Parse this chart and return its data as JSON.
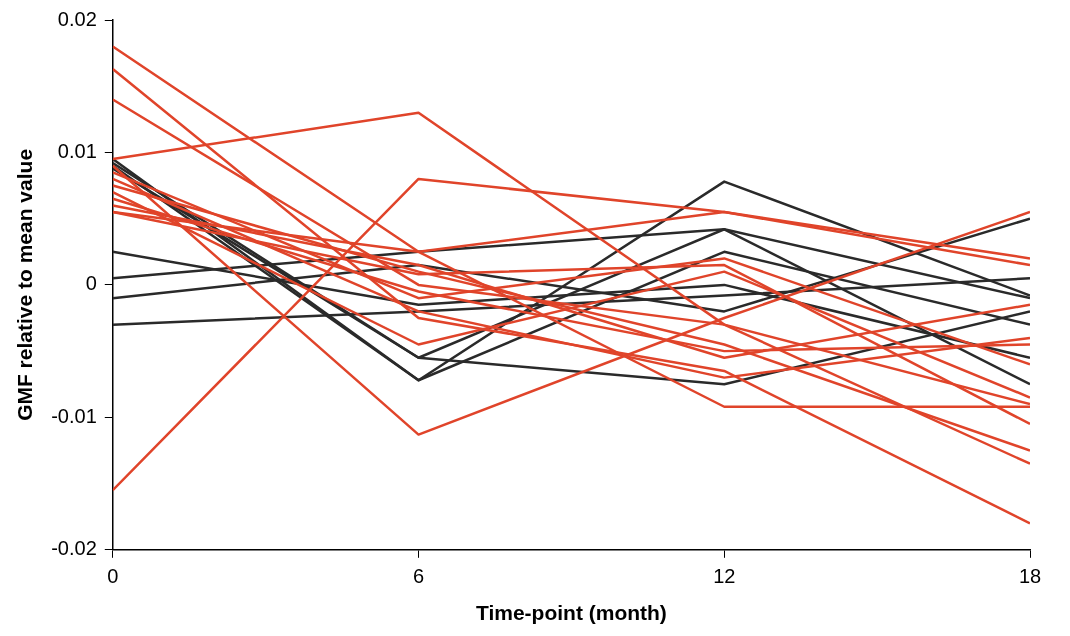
{
  "chart_data": {
    "type": "line",
    "xlabel": "Time-point (month)",
    "ylabel": "GMF relative to mean value",
    "x": [
      0,
      6,
      12,
      18
    ],
    "xlim": [
      0,
      18
    ],
    "xticks": [
      0,
      6,
      12,
      18
    ],
    "ylim": [
      -0.02,
      0.02
    ],
    "yticks": [
      -0.02,
      -0.01,
      0,
      0.01,
      0.02
    ],
    "grid": false,
    "legend": false,
    "marker": "none",
    "line_style": "solid",
    "series": [
      {
        "color": "#e0442a",
        "values": [
          0.018,
          0.0025,
          0.0055,
          0.0015
        ]
      },
      {
        "color": "#e0442a",
        "values": [
          0.0163,
          -0.0025,
          -0.0065,
          -0.018
        ]
      },
      {
        "color": "#e0442a",
        "values": [
          0.014,
          0.0,
          -0.003,
          -0.0135
        ]
      },
      {
        "color": "#e0442a",
        "values": [
          0.0095,
          0.013,
          -0.003,
          -0.009
        ]
      },
      {
        "color": "#e0442a",
        "values": [
          0.0055,
          0.0008,
          0.0015,
          -0.0105
        ]
      },
      {
        "color": "#e0442a",
        "values": [
          0.0055,
          0.0025,
          -0.0092,
          -0.0092
        ]
      },
      {
        "color": "#e0442a",
        "values": [
          -0.0155,
          0.008,
          0.0055,
          0.002
        ]
      },
      {
        "color": "#e0442a",
        "values": [
          0.009,
          -0.0113,
          -0.0025,
          0.0055
        ]
      },
      {
        "color": "#e0442a",
        "values": [
          0.0085,
          -0.001,
          0.002,
          -0.006
        ]
      },
      {
        "color": "#e0442a",
        "values": [
          0.008,
          -0.002,
          -0.007,
          -0.004
        ]
      },
      {
        "color": "#e0442a",
        "values": [
          0.0075,
          0.001,
          -0.0045,
          -0.0125
        ]
      },
      {
        "color": "#e0442a",
        "values": [
          0.007,
          -0.0045,
          0.001,
          -0.0085
        ]
      },
      {
        "color": "#e0442a",
        "values": [
          0.0065,
          -0.0005,
          -0.005,
          -0.0045
        ]
      },
      {
        "color": "#e0442a",
        "values": [
          0.006,
          0.0015,
          -0.0055,
          -0.0015
        ]
      },
      {
        "color": "#2a2a2a",
        "values": [
          0.0095,
          -0.0072,
          0.0078,
          -0.0008
        ]
      },
      {
        "color": "#2a2a2a",
        "values": [
          0.0092,
          -0.0055,
          0.0042,
          -0.0075
        ]
      },
      {
        "color": "#2a2a2a",
        "values": [
          0.009,
          -0.0072,
          0.0025,
          -0.003
        ]
      },
      {
        "color": "#2a2a2a",
        "values": [
          0.0088,
          -0.0055,
          -0.0075,
          -0.002
        ]
      },
      {
        "color": "#2a2a2a",
        "values": [
          0.0025,
          -0.0015,
          0.0,
          -0.0055
        ]
      },
      {
        "color": "#2a2a2a",
        "values": [
          0.0005,
          0.0025,
          0.0042,
          -0.001
        ]
      },
      {
        "color": "#2a2a2a",
        "values": [
          -0.001,
          0.0015,
          -0.002,
          0.005
        ]
      },
      {
        "color": "#2a2a2a",
        "values": [
          -0.003,
          -0.002,
          -0.0008,
          0.0005
        ]
      }
    ]
  }
}
